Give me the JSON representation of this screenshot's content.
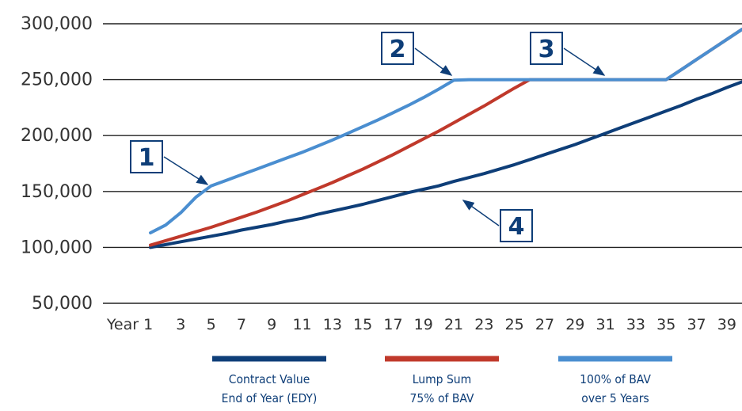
{
  "chart_data": {
    "type": "line",
    "title": "",
    "xlabel": "",
    "ylabel": "",
    "x_tick_labels": [
      "Year 1",
      "3",
      "5",
      "7",
      "9",
      "11",
      "13",
      "15",
      "17",
      "19",
      "21",
      "23",
      "25",
      "27",
      "29",
      "31",
      "33",
      "35",
      "37",
      "39"
    ],
    "x": [
      1,
      2,
      3,
      4,
      5,
      6,
      7,
      8,
      9,
      10,
      11,
      12,
      13,
      14,
      15,
      16,
      17,
      18,
      19,
      20,
      21,
      22,
      23,
      24,
      25,
      26,
      27,
      28,
      29,
      30,
      31,
      32,
      33,
      34,
      35,
      36,
      37,
      38,
      39,
      40
    ],
    "y_ticks": [
      {
        "value": 300000,
        "label": "300,000"
      },
      {
        "value": 250000,
        "label": "250,000"
      },
      {
        "value": 200000,
        "label": "200,000"
      },
      {
        "value": 150000,
        "label": "150,000"
      },
      {
        "value": 100000,
        "label": "100,000"
      },
      {
        "value": 50000,
        "label": "50,000"
      }
    ],
    "ylim": [
      50000,
      300000
    ],
    "xlim": [
      1,
      40
    ],
    "grid": "horizontal",
    "legend_position": "bottom",
    "series": [
      {
        "name_lines": [
          "Contract Value",
          "End of Year (EDY)"
        ],
        "color": "#0e3e78",
        "values": [
          100000,
          102500,
          105000,
          107500,
          110000,
          112500,
          115500,
          118000,
          120500,
          123500,
          126000,
          129500,
          132500,
          135500,
          138500,
          142000,
          145500,
          149000,
          152000,
          155000,
          159000,
          162500,
          166000,
          170000,
          174000,
          178500,
          183000,
          187500,
          192000,
          197000,
          202000,
          207000,
          212000,
          217000,
          222000,
          227000,
          232500,
          237500,
          243000,
          248000
        ]
      },
      {
        "name_lines": [
          "Lump Sum",
          "75% of BAV"
        ],
        "color": "#c0392b",
        "values": [
          102000,
          106000,
          110000,
          114000,
          118000,
          122500,
          127000,
          131500,
          136500,
          141500,
          147000,
          152500,
          158000,
          164000,
          170000,
          176500,
          183000,
          190000,
          197000,
          204000,
          211500,
          219000,
          226500,
          234500,
          242500,
          250000,
          250000,
          250000,
          250000,
          250000,
          250000,
          250000,
          250000,
          250000,
          250000,
          259000,
          268000,
          277000,
          286000,
          295000
        ]
      },
      {
        "name_lines": [
          "100% of BAV",
          "over 5 Years"
        ],
        "color": "#4a8ed0",
        "values": [
          113000,
          120000,
          131000,
          145000,
          155000,
          160000,
          165000,
          170000,
          175000,
          180000,
          185000,
          190500,
          196000,
          202000,
          208000,
          214000,
          220500,
          227000,
          234000,
          241500,
          249500,
          250000,
          250000,
          250000,
          250000,
          250000,
          250000,
          250000,
          250000,
          250000,
          250000,
          250000,
          250000,
          250000,
          250000,
          259000,
          268000,
          277000,
          286000,
          295000
        ]
      }
    ],
    "annotations": [
      {
        "label": "1",
        "target_x": 4.6,
        "target_y": 153000
      },
      {
        "label": "2",
        "target_x": 11,
        "target_y": 250000
      },
      {
        "label": "3",
        "target_x": 17.5,
        "target_y": 250000
      },
      {
        "label": "4",
        "target_x": 14,
        "target_y": 150000
      }
    ]
  }
}
